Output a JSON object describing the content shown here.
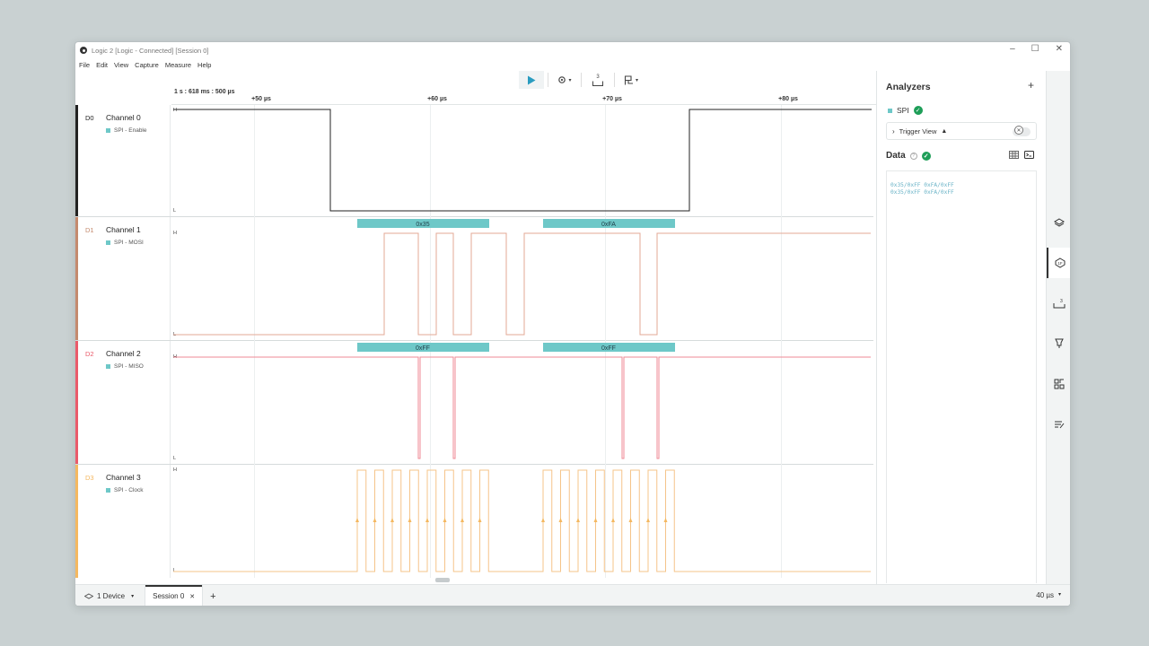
{
  "window": {
    "title": "Logic 2 [Logic - Connected] [Session 0]",
    "controls": [
      "–",
      "☐",
      "✕"
    ]
  },
  "menu": [
    "File",
    "Edit",
    "View",
    "Capture",
    "Measure",
    "Help"
  ],
  "toolbar": {
    "buttons": [
      {
        "name": "start-capture-button",
        "icon": "play-icon"
      },
      {
        "name": "capture-settings-button",
        "icon": "gear-icon"
      },
      {
        "name": "trigger-button",
        "icon": "digital-trigger-icon",
        "label": "3"
      },
      {
        "name": "marker-button",
        "icon": "flag-icon"
      }
    ]
  },
  "timeline": {
    "origin": "1 s : 618 ms : 500 µs",
    "ticks": [
      "+50 µs",
      "+60 µs",
      "+70 µs",
      "+80 µs"
    ]
  },
  "channels": [
    {
      "index": "D0",
      "name": "Channel 0",
      "analyzer": "SPI - Enable",
      "color": "#222222",
      "high": "H",
      "low": "L"
    },
    {
      "index": "D1",
      "name": "Channel 1",
      "analyzer": "SPI - MOSI",
      "color": "#c48a6e",
      "high": "H",
      "low": "L",
      "frames": [
        "0x35",
        "0xFA"
      ]
    },
    {
      "index": "D2",
      "name": "Channel 2",
      "analyzer": "SPI - MISO",
      "color": "#ea5a6a",
      "high": "H",
      "low": "L",
      "frames": [
        "0xFF",
        "0xFF"
      ]
    },
    {
      "index": "D3",
      "name": "Channel 3",
      "analyzer": "SPI - Clock",
      "color": "#f4b860",
      "high": "H",
      "low": "L"
    }
  ],
  "analyzers": {
    "title": "Analyzers",
    "add_label": "+",
    "spi_label": "SPI",
    "trigger_view_label": "Trigger View",
    "data_label": "Data",
    "data_lines": [
      "0x35/0xFF 0xFA/0xFF",
      "0x35/0xFF 0xFA/0xFF"
    ]
  },
  "status": {
    "device_label": "1 Device",
    "session_label": "Session 0",
    "zoom_label": "40 µs"
  }
}
